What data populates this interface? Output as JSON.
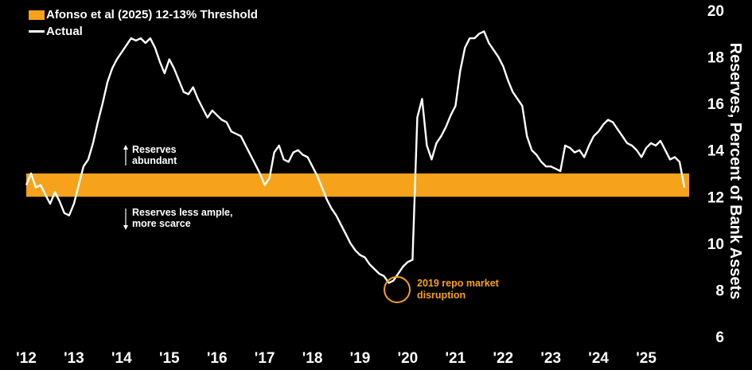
{
  "chart_data": {
    "type": "line",
    "title": "",
    "xlabel": "",
    "ylabel": "Reserves, Percent of Bank Assets",
    "ylim": [
      6,
      20
    ],
    "xlim": [
      2012,
      2025.9
    ],
    "y_ticks": [
      "6",
      "8",
      "10",
      "12",
      "14",
      "16",
      "18",
      "20"
    ],
    "x_ticks": [
      "'12",
      "'13",
      "'14",
      "'15",
      "'16",
      "'17",
      "'18",
      "'19",
      "'20",
      "'21",
      "'22",
      "'23",
      "'24",
      "'25"
    ],
    "x_tick_values": [
      2012,
      2013,
      2014,
      2015,
      2016,
      2017,
      2018,
      2019,
      2020,
      2021,
      2022,
      2023,
      2024,
      2025
    ],
    "band": {
      "name": "Afonso et al (2025) 12-13% Threshold",
      "lower": 12,
      "upper": 13,
      "color": "#f7a21b"
    },
    "series": [
      {
        "name": "Actual",
        "color": "#ffffff",
        "x": [
          2012.0,
          2012.1,
          2012.2,
          2012.3,
          2012.4,
          2012.5,
          2012.6,
          2012.7,
          2012.8,
          2012.9,
          2013.0,
          2013.1,
          2013.2,
          2013.3,
          2013.4,
          2013.5,
          2013.6,
          2013.7,
          2013.8,
          2013.9,
          2014.0,
          2014.1,
          2014.2,
          2014.3,
          2014.4,
          2014.5,
          2014.6,
          2014.7,
          2014.8,
          2014.9,
          2015.0,
          2015.1,
          2015.2,
          2015.3,
          2015.4,
          2015.5,
          2015.6,
          2015.7,
          2015.8,
          2015.9,
          2016.0,
          2016.1,
          2016.2,
          2016.3,
          2016.4,
          2016.5,
          2016.6,
          2016.7,
          2016.8,
          2016.9,
          2017.0,
          2017.1,
          2017.2,
          2017.3,
          2017.4,
          2017.5,
          2017.6,
          2017.7,
          2017.8,
          2017.9,
          2018.0,
          2018.1,
          2018.2,
          2018.3,
          2018.4,
          2018.5,
          2018.6,
          2018.7,
          2018.8,
          2018.9,
          2019.0,
          2019.1,
          2019.2,
          2019.3,
          2019.4,
          2019.5,
          2019.6,
          2019.7,
          2019.8,
          2019.9,
          2020.0,
          2020.1,
          2020.2,
          2020.3,
          2020.4,
          2020.5,
          2020.6,
          2020.7,
          2020.8,
          2020.9,
          2021.0,
          2021.1,
          2021.2,
          2021.3,
          2021.4,
          2021.5,
          2021.6,
          2021.7,
          2021.8,
          2021.9,
          2022.0,
          2022.1,
          2022.2,
          2022.3,
          2022.4,
          2022.5,
          2022.6,
          2022.7,
          2022.8,
          2022.9,
          2023.0,
          2023.1,
          2023.2,
          2023.3,
          2023.4,
          2023.5,
          2023.6,
          2023.7,
          2023.8,
          2023.9,
          2024.0,
          2024.1,
          2024.2,
          2024.3,
          2024.4,
          2024.5,
          2024.6,
          2024.7,
          2024.8,
          2024.9,
          2025.0,
          2025.1,
          2025.2,
          2025.3,
          2025.4,
          2025.5,
          2025.6,
          2025.7,
          2025.8
        ],
        "values": [
          12.5,
          13.0,
          12.4,
          12.5,
          12.1,
          11.7,
          12.2,
          11.8,
          11.3,
          11.2,
          11.7,
          12.5,
          13.3,
          13.6,
          14.3,
          15.2,
          16.0,
          16.9,
          17.5,
          17.9,
          18.2,
          18.5,
          18.8,
          18.7,
          18.8,
          18.6,
          18.8,
          18.4,
          17.8,
          17.3,
          17.9,
          17.5,
          17.0,
          16.5,
          16.4,
          16.7,
          16.2,
          15.8,
          15.4,
          15.7,
          15.5,
          15.3,
          15.2,
          14.8,
          14.7,
          14.6,
          14.2,
          13.8,
          13.4,
          13.0,
          12.5,
          12.8,
          13.9,
          14.2,
          13.6,
          13.5,
          13.9,
          14.0,
          13.8,
          13.7,
          13.3,
          12.9,
          12.4,
          11.9,
          11.5,
          11.2,
          10.8,
          10.4,
          10.0,
          9.7,
          9.5,
          9.4,
          9.1,
          8.9,
          8.7,
          8.6,
          8.3,
          8.4,
          8.7,
          9.0,
          9.2,
          9.3,
          15.4,
          16.2,
          14.2,
          13.6,
          14.3,
          14.6,
          15.0,
          15.5,
          15.9,
          17.4,
          18.4,
          18.8,
          18.8,
          19.0,
          19.1,
          18.6,
          18.3,
          18.0,
          17.6,
          17.0,
          16.5,
          16.2,
          15.9,
          14.6,
          14.0,
          13.8,
          13.5,
          13.3,
          13.3,
          13.2,
          13.1,
          14.2,
          14.1,
          13.9,
          14.0,
          13.7,
          14.2,
          14.6,
          14.8,
          15.1,
          15.3,
          15.2,
          14.9,
          14.6,
          14.3,
          14.2,
          14.0,
          13.7,
          14.1,
          14.3,
          14.2,
          14.4,
          14.0,
          13.6,
          13.7,
          13.5,
          12.4
        ]
      }
    ],
    "annotations": {
      "abundant_line1": "Reserves",
      "abundant_line2": "abundant",
      "scarce_line1": "Reserves less ample,",
      "scarce_line2": "more scarce",
      "repo_line1": "2019 repo market",
      "repo_line2": "disruption"
    }
  }
}
